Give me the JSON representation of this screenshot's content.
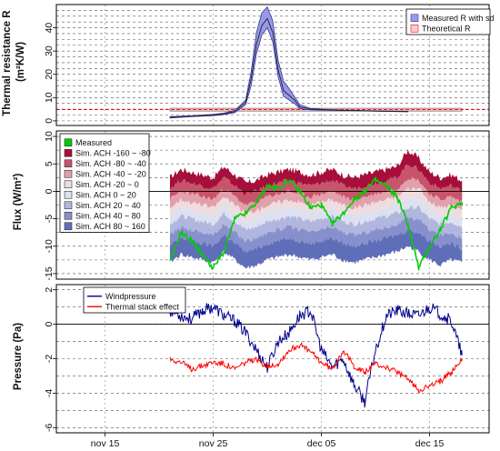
{
  "figure": {
    "date_axis": {
      "tick_labels": [
        "nov 15",
        "nov 25",
        "dec 05",
        "dec 15"
      ],
      "tick_days": [
        15,
        25,
        35,
        45
      ],
      "range": [
        10.5,
        50.5
      ]
    }
  },
  "chart_data": [
    {
      "type": "area",
      "name": "thermal-resistance",
      "ylabel": "Thermal resistance R\n(m²K/W)",
      "ylim": [
        -2,
        50
      ],
      "yticks": [
        0,
        10,
        20,
        30,
        40
      ],
      "grid": "horizontal dashed every 2.5 units",
      "legend_placement": "top-right",
      "legend": [
        "Measured R with sd",
        "Theoretical R"
      ],
      "colors": {
        "measured_fill": "#9999e6",
        "measured_edge": "#3333aa",
        "theoretical_fill": "#ffcccc",
        "theoretical_edge": "#ff0000"
      },
      "theoretical_R": 4.8,
      "series": [
        {
          "name": "Measured R with sd",
          "x": [
            "nov 21",
            "nov 23",
            "nov 25",
            "nov 26",
            "nov 27",
            "nov 28",
            "nov 28 12h",
            "nov 29",
            "nov 29 12h",
            "nov 30",
            "nov 30 12h",
            "dec 01",
            "dec 01 12h",
            "dec 02",
            "dec 02 12h",
            "dec 03",
            "dec 04",
            "dec 05",
            "dec 07",
            "dec 10",
            "dec 13"
          ],
          "values": [
            1.5,
            2.0,
            2.5,
            3.0,
            4.0,
            8.0,
            18.0,
            33.0,
            41.0,
            44.0,
            38.0,
            22.0,
            13.0,
            11.0,
            9.0,
            6.0,
            5.0,
            4.8,
            4.5,
            4.2,
            4.0
          ],
          "upper": [
            1.8,
            2.2,
            2.8,
            3.3,
            4.5,
            9.0,
            21.0,
            38.0,
            46.5,
            49.0,
            43.0,
            26.0,
            17.0,
            14.0,
            10.5,
            7.0,
            5.3,
            5.0,
            4.6,
            4.3,
            4.1
          ],
          "lower": [
            1.2,
            1.8,
            2.2,
            2.7,
            3.5,
            7.0,
            15.0,
            29.0,
            37.0,
            40.0,
            34.0,
            19.0,
            10.5,
            9.0,
            7.5,
            5.2,
            4.7,
            4.6,
            4.4,
            4.1,
            3.9
          ]
        }
      ]
    },
    {
      "type": "area",
      "name": "flux",
      "ylabel": "Flux (W/m²)",
      "ylim": [
        -16,
        11
      ],
      "yticks": [
        -15,
        -10,
        -5,
        0,
        5,
        10
      ],
      "grid": "horizontal dashed every 2.5 units",
      "legend_placement": "top-left",
      "legend": [
        "Measured",
        "Sim. ACH -160 ~ -80",
        "Sim. ACH -80 ~ -40",
        "Sim. ACH -40 ~ -20",
        "Sim. ACH -20 ~ 0",
        "Sim. ACH 0 ~ 20",
        "Sim. ACH 20 ~ 40",
        "Sim. ACH 40 ~ 80",
        "Sim. ACH 80 ~ 160"
      ],
      "band_colors": [
        "#a50f3a",
        "#c8546b",
        "#e2a0ab",
        "#eedcdf",
        "#dde0ef",
        "#b0b6de",
        "#8790cc",
        "#5f6eb8"
      ],
      "measured_color": "#00cc00",
      "x": [
        "nov 21",
        "nov 22",
        "nov 23",
        "nov 24",
        "nov 25",
        "nov 26",
        "nov 27",
        "nov 28",
        "nov 29",
        "nov 30",
        "dec 01",
        "dec 02",
        "dec 03",
        "dec 04",
        "dec 05",
        "dec 06",
        "dec 07",
        "dec 08",
        "dec 09",
        "dec 10",
        "dec 11",
        "dec 12",
        "dec 13",
        "dec 14",
        "dec 15",
        "dec 16",
        "dec 17",
        "dec 18"
      ],
      "band_boundaries": [
        [
          2.5,
          4.0,
          3.5,
          3.0,
          2.5,
          4.5,
          3.0,
          1.5,
          2.0,
          3.0,
          3.5,
          4.0,
          3.5,
          3.0,
          3.5,
          4.0,
          3.0,
          2.5,
          3.0,
          3.5,
          4.0,
          4.5,
          7.5,
          6.0,
          3.5,
          2.5,
          3.0,
          2.0
        ],
        [
          0.5,
          2.0,
          1.5,
          1.0,
          0.5,
          2.5,
          1.0,
          -0.5,
          0.0,
          1.0,
          1.5,
          2.0,
          1.5,
          1.0,
          1.5,
          2.0,
          1.0,
          0.5,
          1.0,
          1.5,
          2.0,
          2.5,
          5.0,
          4.0,
          1.5,
          0.5,
          1.0,
          0.0
        ],
        [
          -1.5,
          0.0,
          -0.5,
          -1.0,
          -1.5,
          0.5,
          -1.0,
          -2.5,
          -2.0,
          -1.0,
          -0.5,
          0.0,
          -0.5,
          -1.0,
          -0.5,
          0.0,
          -1.0,
          -1.5,
          -1.0,
          -0.5,
          0.0,
          0.5,
          2.5,
          2.0,
          -0.5,
          -1.5,
          -1.0,
          -2.0
        ],
        [
          -3.0,
          -1.5,
          -2.0,
          -2.5,
          -3.0,
          -1.0,
          -2.5,
          -4.0,
          -3.5,
          -2.5,
          -2.0,
          -1.5,
          -2.0,
          -2.5,
          -2.0,
          -1.5,
          -2.5,
          -3.0,
          -2.5,
          -2.0,
          -1.5,
          -1.0,
          0.5,
          0.5,
          -2.0,
          -3.0,
          -2.5,
          -3.5
        ],
        [
          -4.5,
          -3.0,
          -3.5,
          -4.0,
          -4.5,
          -2.5,
          -4.0,
          -5.5,
          -5.0,
          -4.0,
          -3.5,
          -3.0,
          -3.5,
          -4.0,
          -3.5,
          -3.0,
          -4.0,
          -4.5,
          -4.0,
          -3.5,
          -3.0,
          -2.5,
          -1.5,
          -1.0,
          -3.5,
          -4.5,
          -4.0,
          -5.0
        ],
        [
          -6.0,
          -4.5,
          -5.0,
          -5.5,
          -6.0,
          -4.0,
          -5.5,
          -7.0,
          -6.5,
          -5.5,
          -5.0,
          -4.5,
          -5.0,
          -5.5,
          -5.0,
          -4.5,
          -5.5,
          -6.0,
          -5.5,
          -5.0,
          -4.5,
          -4.0,
          -3.0,
          -3.0,
          -5.0,
          -6.0,
          -5.5,
          -6.5
        ],
        [
          -8.0,
          -6.5,
          -7.0,
          -7.5,
          -8.0,
          -6.0,
          -7.5,
          -9.0,
          -8.5,
          -7.5,
          -7.0,
          -6.5,
          -7.0,
          -7.5,
          -7.0,
          -6.5,
          -7.5,
          -8.0,
          -7.5,
          -7.0,
          -6.5,
          -6.0,
          -5.0,
          -5.0,
          -7.0,
          -8.0,
          -7.5,
          -8.5
        ],
        [
          -10.0,
          -8.5,
          -9.0,
          -9.5,
          -10.0,
          -8.0,
          -9.5,
          -11.0,
          -10.5,
          -9.5,
          -9.0,
          -8.5,
          -9.0,
          -9.5,
          -9.0,
          -8.5,
          -9.5,
          -10.0,
          -9.5,
          -9.0,
          -8.5,
          -8.0,
          -7.0,
          -7.5,
          -9.0,
          -10.0,
          -9.5,
          -10.5
        ],
        [
          -13.0,
          -11.5,
          -12.0,
          -12.5,
          -13.0,
          -11.0,
          -12.5,
          -14.0,
          -13.5,
          -12.5,
          -12.0,
          -11.5,
          -12.0,
          -12.5,
          -12.0,
          -11.5,
          -12.5,
          -13.0,
          -12.5,
          -12.0,
          -11.5,
          -11.0,
          -10.0,
          -11.0,
          -12.5,
          -13.5,
          -12.5,
          -13.0
        ]
      ],
      "measured": [
        -13.0,
        -7.5,
        -9.0,
        -11.5,
        -14.0,
        -11.0,
        -5.0,
        -4.0,
        -2.0,
        1.0,
        0.5,
        2.0,
        0.0,
        -3.0,
        -2.5,
        -6.0,
        -4.0,
        -1.5,
        0.0,
        2.0,
        1.0,
        -1.0,
        -6.0,
        -14.0,
        -10.0,
        -7.0,
        -3.0,
        -2.0
      ]
    },
    {
      "type": "line",
      "name": "pressure",
      "ylabel": "Pressure (Pa)",
      "ylim": [
        -6.3,
        2.3
      ],
      "yticks": [
        -6,
        -4,
        -2,
        0,
        2
      ],
      "grid": "horizontal dashed every 1 unit",
      "legend_placement": "top-left",
      "legend": [
        "Windpressure",
        "Thermal stack effect"
      ],
      "x": [
        "nov 21",
        "nov 22",
        "nov 23",
        "nov 24",
        "nov 25",
        "nov 26",
        "nov 27",
        "nov 28",
        "nov 29",
        "nov 30",
        "dec 01",
        "dec 02",
        "dec 03",
        "dec 04",
        "dec 05",
        "dec 06",
        "dec 07",
        "dec 08",
        "dec 09",
        "dec 10",
        "dec 11",
        "dec 12",
        "dec 13",
        "dec 14",
        "dec 15",
        "dec 16",
        "dec 17",
        "dec 18"
      ],
      "series": [
        {
          "name": "Windpressure",
          "color": "#00008b",
          "values": [
            0.8,
            0.5,
            0.3,
            0.8,
            1.0,
            0.5,
            0.2,
            -0.5,
            -1.5,
            -2.5,
            -1.0,
            -0.5,
            0.5,
            0.8,
            -1.5,
            -2.5,
            -2.0,
            -3.5,
            -4.5,
            -1.5,
            0.5,
            0.8,
            0.6,
            0.5,
            1.0,
            0.6,
            0.2,
            -1.8
          ]
        },
        {
          "name": "Thermal stack effect",
          "color": "#ff0000",
          "values": [
            -2.0,
            -2.2,
            -2.6,
            -2.4,
            -2.2,
            -2.3,
            -2.6,
            -2.2,
            -2.1,
            -2.4,
            -2.3,
            -1.5,
            -1.2,
            -1.6,
            -2.2,
            -2.6,
            -1.5,
            -2.4,
            -2.8,
            -2.3,
            -2.5,
            -2.8,
            -3.2,
            -3.8,
            -3.6,
            -3.3,
            -2.8,
            -2.0
          ]
        }
      ]
    }
  ]
}
